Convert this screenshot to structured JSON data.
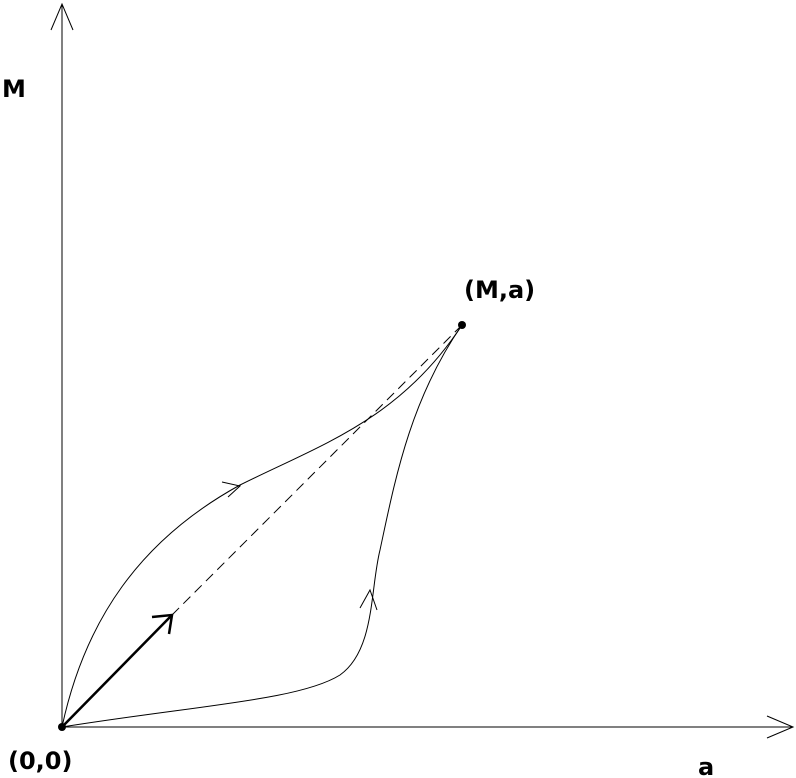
{
  "axes": {
    "y_label": "M",
    "x_label": "a"
  },
  "points": {
    "origin": "(0,0)",
    "end": "(M,a)"
  }
}
